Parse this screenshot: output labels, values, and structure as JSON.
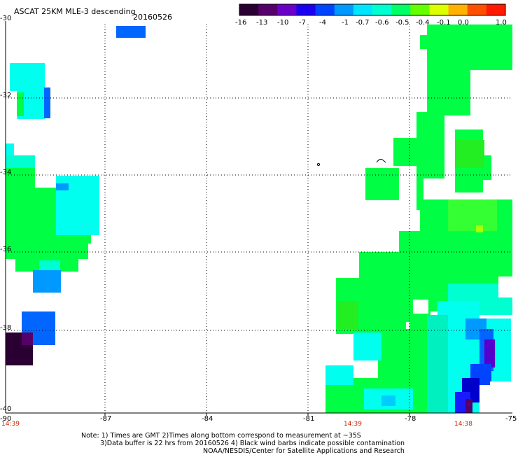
{
  "header": {
    "title": "ASCAT 25KM MLE-3 descending",
    "date": "20160526"
  },
  "colorbar": {
    "labels": [
      "-16",
      "-13",
      "-10",
      "-7",
      "-4",
      "-1",
      "-0.7",
      "-0.6",
      "-0.5",
      "-0.4",
      "-0.1",
      "0.0",
      "1.0"
    ],
    "colors": [
      "#2a0033",
      "#55006a",
      "#6a00c8",
      "#1a00f0",
      "#0044ff",
      "#0099ff",
      "#00e5ff",
      "#00ffd0",
      "#00ff66",
      "#66ff00",
      "#ddff00",
      "#ffb000",
      "#ff5000",
      "#ff1a00"
    ]
  },
  "map": {
    "lon_labels": [
      "-90",
      "-87",
      "-84",
      "-81",
      "-78",
      "-75"
    ],
    "lat_labels": [
      "-30",
      "-32",
      "-34",
      "-36",
      "-38",
      "-40"
    ],
    "time_labels": {
      "left": "14:39",
      "middle": "14:39",
      "right": "14:38"
    }
  },
  "notes": {
    "line1": "Note: 1) Times are GMT 2)Times along bottom correspond to measurement at ~35S",
    "line2": "3)Data buffer is 22 hrs from 20160526 4) Black wind barbs indicate possible contamination",
    "line3": "NOAA/NESDIS/Center for Satellite Applications and Research"
  },
  "palette": {
    "green": "#00ff44",
    "green_light": "#33ff33",
    "cyan": "#00ffee",
    "teal": "#00f0c0",
    "blue": "#0066ff",
    "deep_blue": "#1a1aff",
    "navy": "#0000cc",
    "violet": "#5500cc",
    "dark": "#2a0033"
  }
}
